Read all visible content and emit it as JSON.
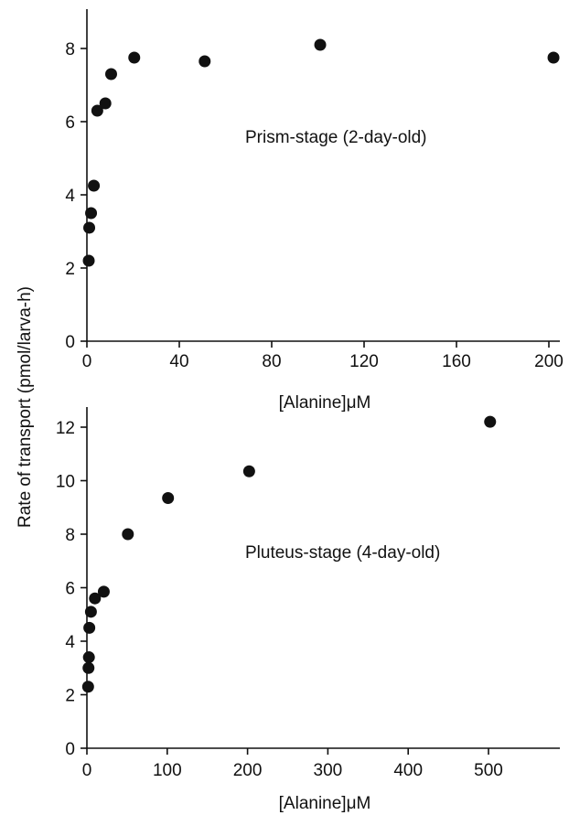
{
  "ylabel": "Rate of transport (pmol/larva-h)",
  "chart_data": [
    {
      "type": "scatter",
      "annotation": "Prism-stage (2-day-old)",
      "xlabel": "[Alanine]μM",
      "xlim": [
        0,
        210
      ],
      "ylim": [
        0,
        9
      ],
      "xticks": [
        0,
        40,
        80,
        120,
        160,
        200
      ],
      "yticks": [
        0,
        2,
        4,
        6,
        8
      ],
      "points": [
        {
          "x": 0.8,
          "y": 2.2
        },
        {
          "x": 1.0,
          "y": 3.1
        },
        {
          "x": 1.8,
          "y": 3.5
        },
        {
          "x": 3.0,
          "y": 4.25
        },
        {
          "x": 4.5,
          "y": 6.3
        },
        {
          "x": 8.0,
          "y": 6.5
        },
        {
          "x": 10.5,
          "y": 7.3
        },
        {
          "x": 20.5,
          "y": 7.75
        },
        {
          "x": 51.0,
          "y": 7.65
        },
        {
          "x": 101.0,
          "y": 8.1
        },
        {
          "x": 202.0,
          "y": 7.75
        }
      ]
    },
    {
      "type": "scatter",
      "annotation": "Pluteus-stage (4-day-old)",
      "xlabel": "[Alanine]μM",
      "xlim": [
        0,
        600
      ],
      "ylim": [
        0,
        13
      ],
      "xticks": [
        0,
        100,
        200,
        300,
        400,
        500
      ],
      "yticks": [
        0,
        2,
        4,
        6,
        8,
        10,
        12
      ],
      "points": [
        {
          "x": 1.5,
          "y": 2.3
        },
        {
          "x": 2.0,
          "y": 3.0
        },
        {
          "x": 2.5,
          "y": 3.4
        },
        {
          "x": 3.0,
          "y": 4.5
        },
        {
          "x": 5.0,
          "y": 5.1
        },
        {
          "x": 10.0,
          "y": 5.6
        },
        {
          "x": 21.0,
          "y": 5.85
        },
        {
          "x": 51.0,
          "y": 8.0
        },
        {
          "x": 101.0,
          "y": 9.35
        },
        {
          "x": 202.0,
          "y": 10.35
        },
        {
          "x": 502.0,
          "y": 12.2
        }
      ]
    }
  ]
}
